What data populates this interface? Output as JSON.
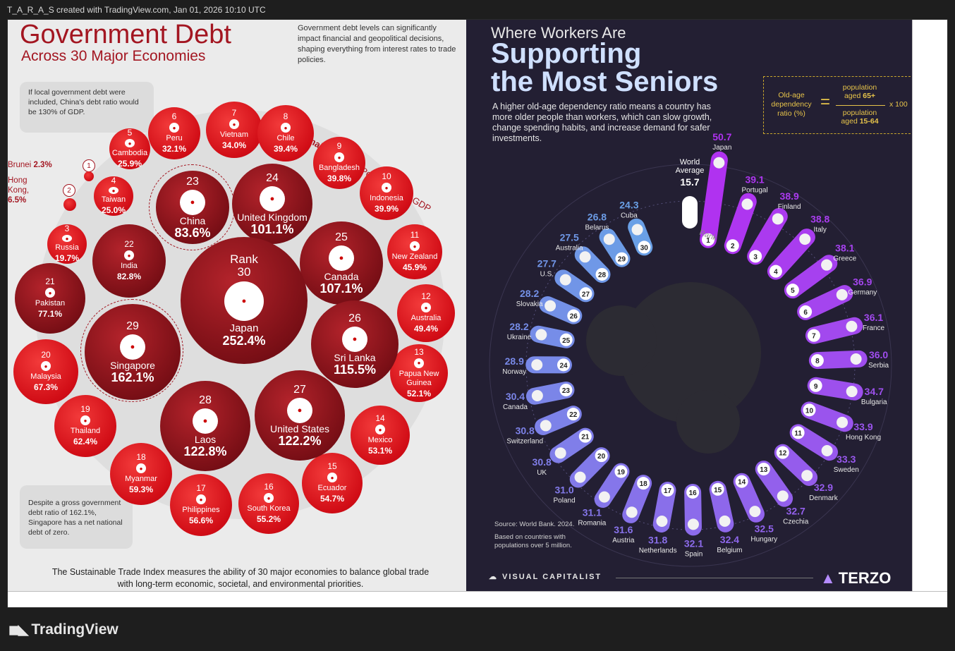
{
  "header": {
    "text": "T_A_R_A_S created with TradingView.com, Jan 01, 2026 10:10 UTC"
  },
  "footer": {
    "logo_text": "TradingView"
  },
  "left": {
    "title": "Government Debt",
    "subtitle": "Across 30 Major Economies",
    "description": "Government debt levels can significantly impact financial and geopolitical decisions, shaping everything from interest rates to trade policies.",
    "arc_label_bold": "National Debt",
    "arc_label_rest": " as a Percentage of GDP",
    "note_china": "If local government debt were included, China's debt ratio would be 130% of GDP.",
    "note_singapore": "Despite a gross government debt ratio of 162.1%, Singapore has a net national debt of zero.",
    "footer": "The Sustainable Trade Index measures the ability of 30 major economies to balance global trade with long-term economic, societal, and environmental priorities.",
    "side_labels": [
      {
        "rank": "1",
        "name": "Brunei",
        "value": "2.3%"
      },
      {
        "rank": "2",
        "name": "Hong Kong,",
        "value": "6.5%"
      }
    ],
    "rank_label": "Rank",
    "countries": [
      {
        "rank": "3",
        "name": "Russia",
        "value": "19.7%"
      },
      {
        "rank": "4",
        "name": "Taiwan",
        "value": "25.0%"
      },
      {
        "rank": "5",
        "name": "Cambodia",
        "value": "25.9%"
      },
      {
        "rank": "6",
        "name": "Peru",
        "value": "32.1%"
      },
      {
        "rank": "7",
        "name": "Vietnam",
        "value": "34.0%"
      },
      {
        "rank": "8",
        "name": "Chile",
        "value": "39.4%"
      },
      {
        "rank": "9",
        "name": "Bangladesh",
        "value": "39.8%"
      },
      {
        "rank": "10",
        "name": "Indonesia",
        "value": "39.9%"
      },
      {
        "rank": "11",
        "name": "New Zealand",
        "value": "45.9%"
      },
      {
        "rank": "12",
        "name": "Australia",
        "value": "49.4%"
      },
      {
        "rank": "13",
        "name": "Papua New Guinea",
        "value": "52.1%"
      },
      {
        "rank": "14",
        "name": "Mexico",
        "value": "53.1%"
      },
      {
        "rank": "15",
        "name": "Ecuador",
        "value": "54.7%"
      },
      {
        "rank": "16",
        "name": "South Korea",
        "value": "55.2%"
      },
      {
        "rank": "17",
        "name": "Philippines",
        "value": "56.6%"
      },
      {
        "rank": "18",
        "name": "Myanmar",
        "value": "59.3%"
      },
      {
        "rank": "19",
        "name": "Thailand",
        "value": "62.4%"
      },
      {
        "rank": "20",
        "name": "Malaysia",
        "value": "67.3%"
      },
      {
        "rank": "21",
        "name": "Pakistan",
        "value": "77.1%"
      },
      {
        "rank": "22",
        "name": "India",
        "value": "82.8%"
      },
      {
        "rank": "23",
        "name": "China",
        "value": "83.6%"
      },
      {
        "rank": "24",
        "name": "United Kingdom",
        "value": "101.1%"
      },
      {
        "rank": "25",
        "name": "Canada",
        "value": "107.1%"
      },
      {
        "rank": "26",
        "name": "Sri Lanka",
        "value": "115.5%"
      },
      {
        "rank": "27",
        "name": "United States",
        "value": "122.2%"
      },
      {
        "rank": "28",
        "name": "Laos",
        "value": "122.8%"
      },
      {
        "rank": "29",
        "name": "Singapore",
        "value": "162.1%"
      },
      {
        "rank": "30",
        "name": "Japan",
        "value": "252.4%"
      }
    ]
  },
  "right": {
    "title_line1": "Where Workers Are",
    "title_line2": "Supporting",
    "title_line3": "the Most Seniors",
    "description": "A higher old-age dependency ratio means a country has more older people than workers, which can slow growth, change spending habits, and increase demand for safer investments.",
    "formula": {
      "lhs": "Old-age dependency ratio (%)",
      "eq": "=",
      "num_a": "population",
      "num_b": "aged ",
      "num_bold": "65+",
      "den_a": "population",
      "den_b": "aged ",
      "den_bold": "15-64",
      "mul": "x 100"
    },
    "world_average_label": "World Average",
    "world_average_value": "15.7",
    "rank_label": "Rank",
    "source": "Source: World Bank. 2024.",
    "source_note": "Based on countries with populations over 5 million.",
    "vc_brand": "VISUAL CAPITALIST",
    "terzo_brand": "TERZO",
    "countries": [
      {
        "rank": "1",
        "name": "Japan",
        "value": "50.7"
      },
      {
        "rank": "2",
        "name": "Portugal",
        "value": "39.1"
      },
      {
        "rank": "3",
        "name": "Finland",
        "value": "38.9"
      },
      {
        "rank": "4",
        "name": "Italy",
        "value": "38.8"
      },
      {
        "rank": "5",
        "name": "Greece",
        "value": "38.1"
      },
      {
        "rank": "6",
        "name": "Germany",
        "value": "36.9"
      },
      {
        "rank": "7",
        "name": "France",
        "value": "36.1"
      },
      {
        "rank": "8",
        "name": "Serbia",
        "value": "36.0"
      },
      {
        "rank": "9",
        "name": "Bulgaria",
        "value": "34.7"
      },
      {
        "rank": "10",
        "name": "Hong Kong",
        "value": "33.9"
      },
      {
        "rank": "11",
        "name": "Sweden",
        "value": "33.3"
      },
      {
        "rank": "12",
        "name": "Denmark",
        "value": "32.9"
      },
      {
        "rank": "13",
        "name": "Czechia",
        "value": "32.7"
      },
      {
        "rank": "14",
        "name": "Hungary",
        "value": "32.5"
      },
      {
        "rank": "15",
        "name": "Belgium",
        "value": "32.4"
      },
      {
        "rank": "16",
        "name": "Spain",
        "value": "32.1"
      },
      {
        "rank": "17",
        "name": "Netherlands",
        "value": "31.8"
      },
      {
        "rank": "18",
        "name": "Austria",
        "value": "31.6"
      },
      {
        "rank": "19",
        "name": "Romania",
        "value": "31.1"
      },
      {
        "rank": "20",
        "name": "Poland",
        "value": "31.0"
      },
      {
        "rank": "21",
        "name": "UK",
        "value": "30.8"
      },
      {
        "rank": "22",
        "name": "Switzerland",
        "value": "30.8"
      },
      {
        "rank": "23",
        "name": "Canada",
        "value": "30.4"
      },
      {
        "rank": "24",
        "name": "Norway",
        "value": "28.9"
      },
      {
        "rank": "25",
        "name": "Ukraine",
        "value": "28.2"
      },
      {
        "rank": "26",
        "name": "Slovakia",
        "value": "28.2"
      },
      {
        "rank": "27",
        "name": "U.S.",
        "value": "27.7"
      },
      {
        "rank": "28",
        "name": "Australia",
        "value": "27.5"
      },
      {
        "rank": "29",
        "name": "Belarus",
        "value": "26.8"
      },
      {
        "rank": "30",
        "name": "Cuba",
        "value": "24.3"
      }
    ]
  }
}
